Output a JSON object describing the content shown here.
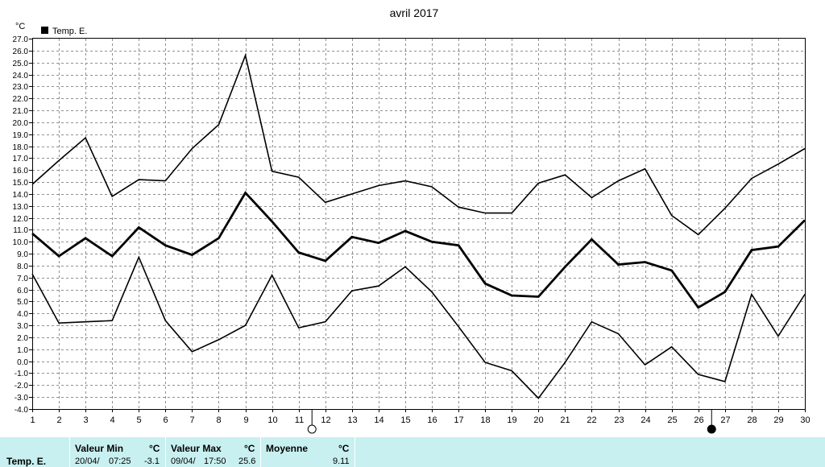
{
  "chart_data": {
    "type": "line",
    "title": "avril 2017",
    "ylabel": "°C",
    "legend": {
      "entry": "Temp. E.",
      "placement": "top-left"
    },
    "x": [
      1,
      2,
      3,
      4,
      5,
      6,
      7,
      8,
      9,
      10,
      11,
      12,
      13,
      14,
      15,
      16,
      17,
      18,
      19,
      20,
      21,
      22,
      23,
      24,
      25,
      26,
      27,
      28,
      29,
      30
    ],
    "ylim": [
      -4.0,
      27.0
    ],
    "ytick_step": 1.0,
    "grid": true,
    "series": [
      {
        "role": "max",
        "color": "#000000",
        "values": [
          14.8,
          16.8,
          18.7,
          13.8,
          15.2,
          15.1,
          17.8,
          19.8,
          25.6,
          15.9,
          15.4,
          13.3,
          14.0,
          14.7,
          15.1,
          14.6,
          12.9,
          12.4,
          12.4,
          14.9,
          15.6,
          13.7,
          15.1,
          16.1,
          12.2,
          10.6,
          12.8,
          15.3,
          16.5,
          17.8
        ]
      },
      {
        "role": "mean",
        "color": "#000000",
        "values": [
          10.7,
          8.8,
          10.3,
          8.8,
          11.2,
          9.7,
          8.9,
          10.3,
          14.1,
          11.7,
          9.1,
          8.4,
          10.4,
          9.9,
          10.9,
          10.0,
          9.7,
          6.5,
          5.5,
          5.4,
          7.9,
          10.2,
          8.1,
          8.3,
          7.6,
          4.5,
          5.8,
          9.3,
          9.6,
          11.8
        ]
      },
      {
        "role": "min",
        "color": "#000000",
        "values": [
          7.3,
          3.2,
          3.3,
          3.4,
          8.7,
          3.4,
          0.8,
          1.8,
          3.0,
          7.2,
          2.8,
          3.3,
          5.9,
          6.3,
          7.9,
          5.8,
          2.9,
          -0.1,
          -0.8,
          -3.1,
          -0.1,
          3.3,
          2.3,
          -0.3,
          1.2,
          -1.1,
          -1.7,
          5.6,
          2.1,
          5.6
        ]
      }
    ],
    "moon_phases": [
      {
        "day": 11,
        "phase": "full-moon"
      },
      {
        "day": 26,
        "phase": "new-moon"
      }
    ]
  },
  "stats": {
    "series_name": "Temp. E.",
    "min": {
      "header": "Valeur Min",
      "unit": "°C",
      "date": "20/04/",
      "time": "07:25",
      "value": "-3.1"
    },
    "max": {
      "header": "Valeur Max",
      "unit": "°C",
      "date": "09/04/",
      "time": "17:50",
      "value": "25.6"
    },
    "mean": {
      "header": "Moyenne",
      "unit": "°C",
      "value": "9.11"
    }
  }
}
